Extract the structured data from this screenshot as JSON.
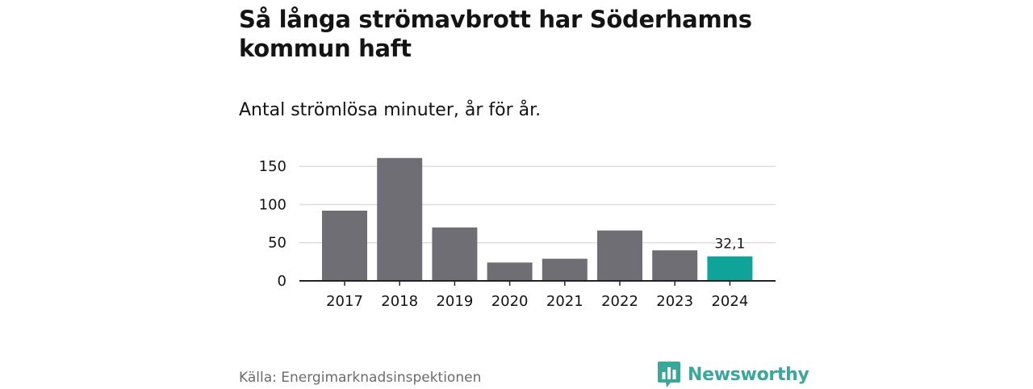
{
  "title": "Så långa strömavbrott har Söderhamns kommun haft",
  "subtitle": "Antal strömlösa minuter, år för år.",
  "source": "Källa: Energimarknadsinspektionen",
  "brand": {
    "name": "Newsworthy",
    "icon": "newsworthy-logo-icon",
    "color": "#3aa79b"
  },
  "colors": {
    "bar": "#6f6e74",
    "highlight": "#10a39a",
    "grid": "#dddddd",
    "axis": "#222222",
    "text": "#141414",
    "source": "#6b6b6b"
  },
  "chart_data": {
    "type": "bar",
    "categories": [
      "2017",
      "2018",
      "2019",
      "2020",
      "2021",
      "2022",
      "2023",
      "2024"
    ],
    "values": [
      92,
      161,
      70,
      24,
      29,
      66,
      40,
      32.1
    ],
    "highlight_index": 7,
    "data_labels": [
      {
        "index": 7,
        "text": "32,1"
      }
    ],
    "yticks": [
      "0",
      "50",
      "100",
      "150"
    ],
    "ytick_values": [
      0,
      50,
      100,
      150
    ],
    "ylim": [
      0,
      165
    ],
    "grid": true,
    "xlabel": "",
    "ylabel": ""
  }
}
